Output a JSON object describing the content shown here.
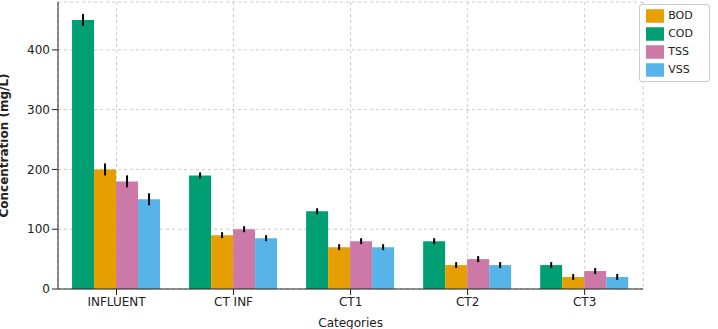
{
  "chart_data": {
    "type": "bar",
    "x_label": "Categories",
    "y_label": "Concentration (mg/L)",
    "categories": [
      "INFLUENT",
      "CT INF",
      "CT1",
      "CT2",
      "CT3"
    ],
    "series": [
      {
        "name": "COD",
        "color": "#009E73",
        "values": [
          450,
          190,
          130,
          80,
          40
        ],
        "errors": [
          10,
          5,
          5,
          5,
          5
        ]
      },
      {
        "name": "BOD",
        "color": "#E69F00",
        "values": [
          200,
          90,
          70,
          40,
          20
        ],
        "errors": [
          10,
          5,
          5,
          5,
          5
        ]
      },
      {
        "name": "TSS",
        "color": "#CC79A7",
        "values": [
          180,
          100,
          80,
          50,
          30
        ],
        "errors": [
          10,
          5,
          5,
          5,
          5
        ]
      },
      {
        "name": "VSS",
        "color": "#56B4E9",
        "values": [
          150,
          85,
          70,
          40,
          20
        ],
        "errors": [
          10,
          5,
          5,
          5,
          5
        ]
      }
    ],
    "ylim": [
      0,
      480
    ],
    "yticks": [
      0,
      100,
      200,
      300,
      400
    ],
    "grid": true,
    "legend": "upper right"
  }
}
